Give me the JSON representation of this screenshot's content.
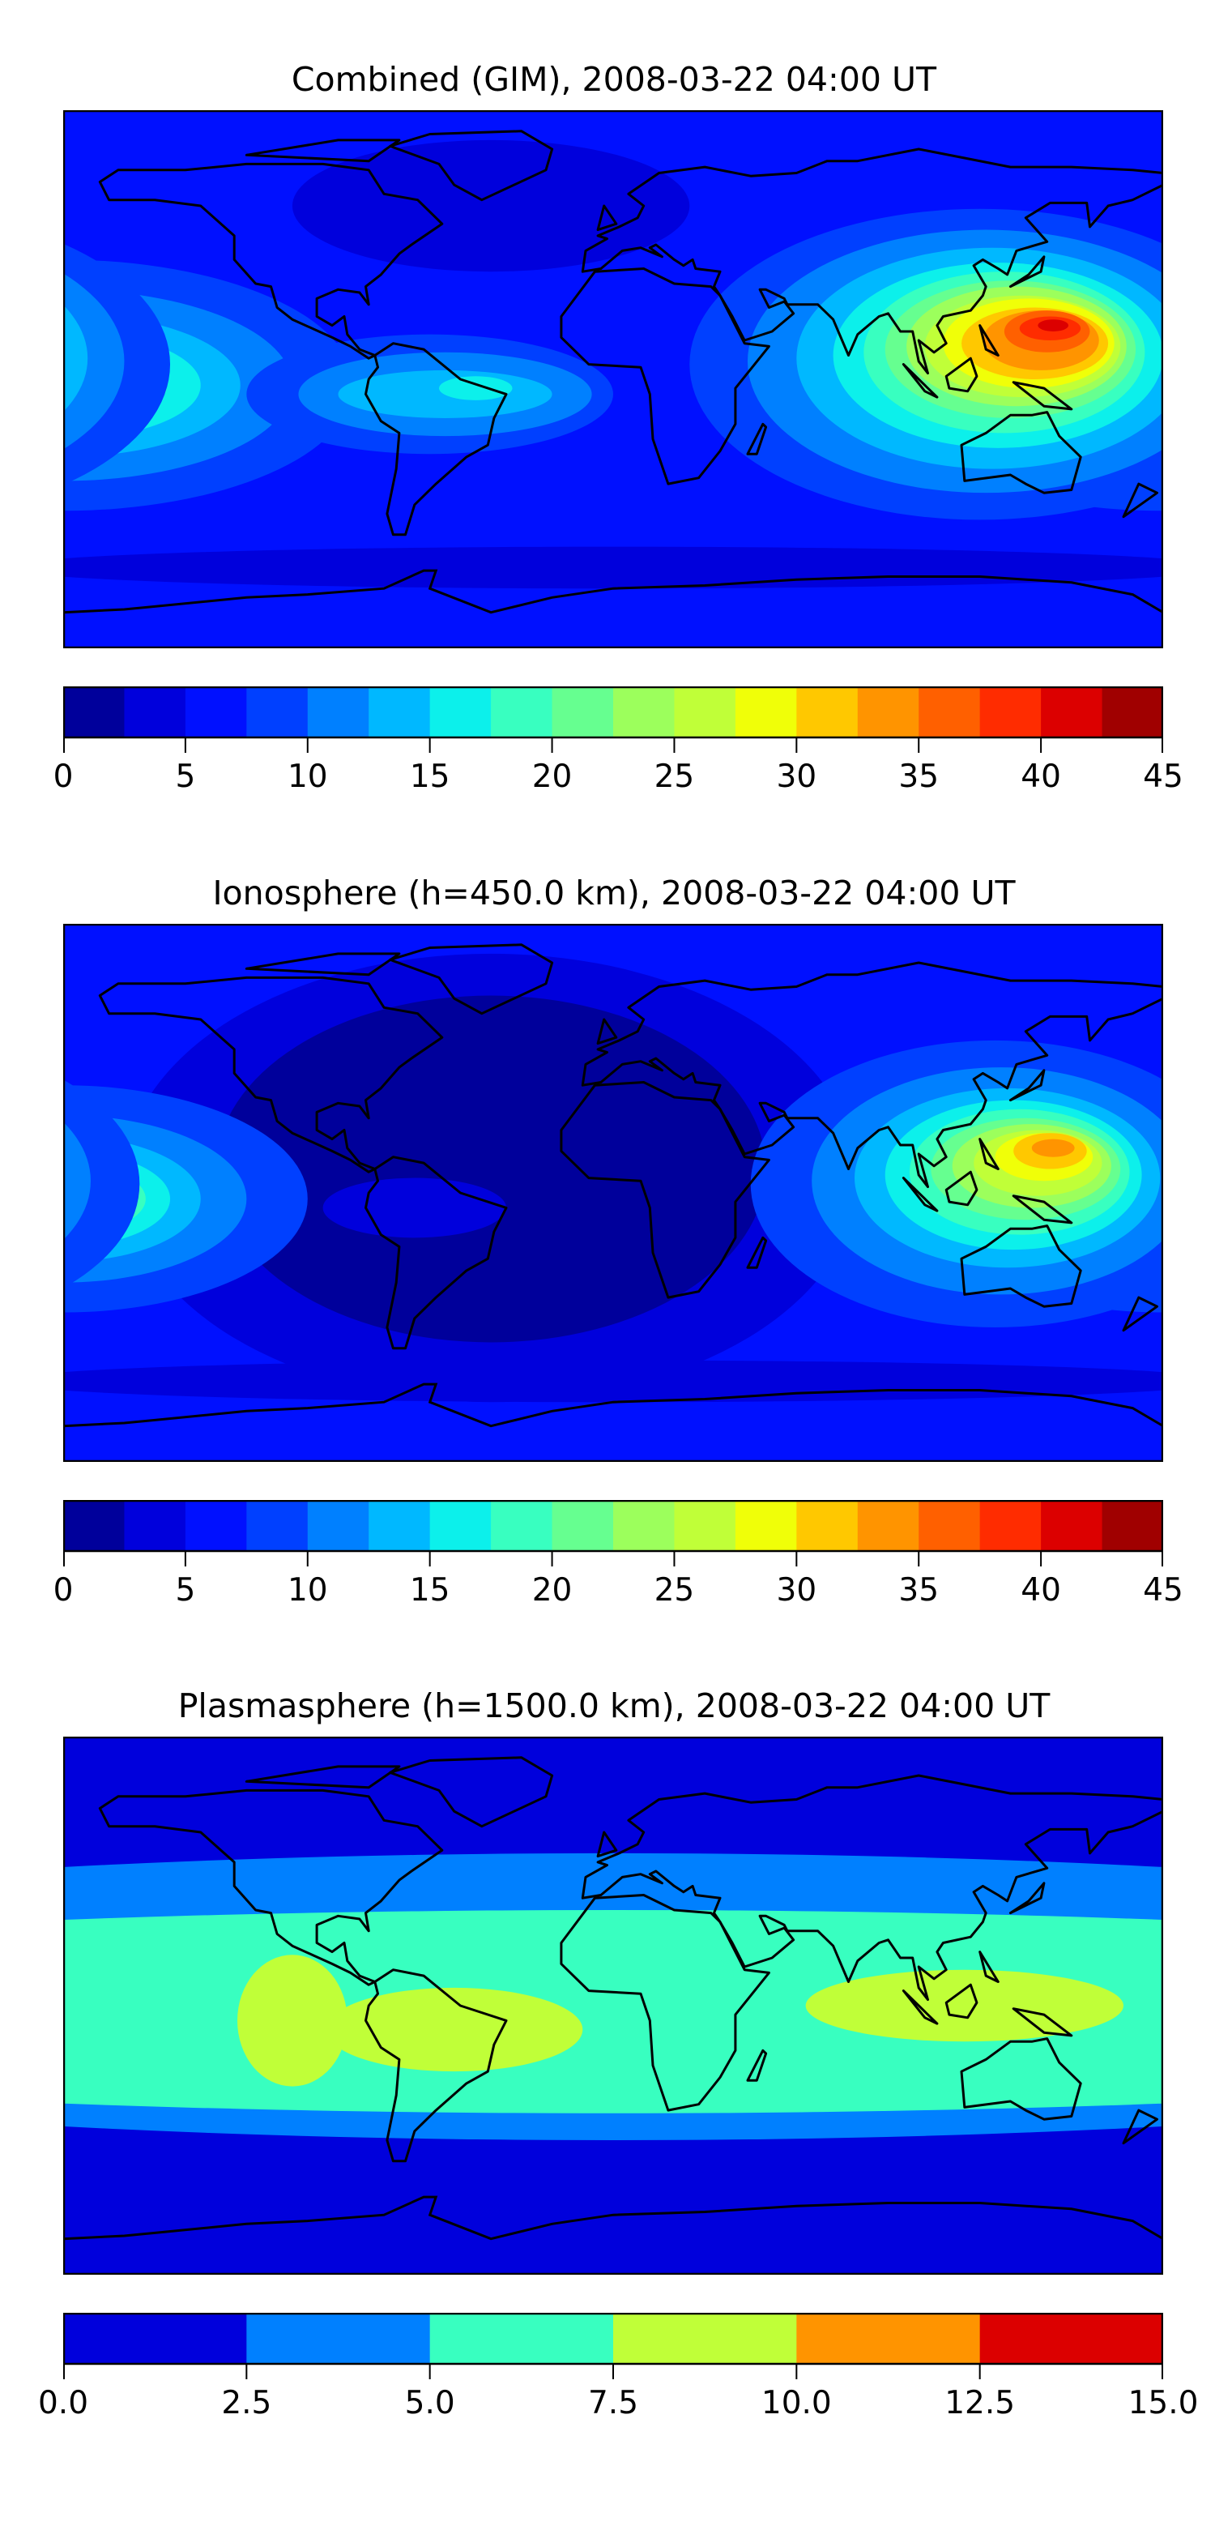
{
  "chart_data": [
    {
      "type": "heatmap",
      "title": "Combined (GIM), 2008-03-22 04:00 UT",
      "projection": "equirectangular",
      "lon_range": [
        -180,
        180
      ],
      "lat_range": [
        -90,
        90
      ],
      "colorbar": {
        "levels": [
          0,
          2.5,
          5,
          7.5,
          10,
          12.5,
          15,
          17.5,
          20,
          22.5,
          25,
          27.5,
          30,
          32.5,
          35,
          37.5,
          40,
          42.5,
          45
        ],
        "colors": [
          "#00009b",
          "#0000dc",
          "#0010ff",
          "#0040ff",
          "#0080ff",
          "#00b8ff",
          "#0cf0eb",
          "#38ffc0",
          "#66ff90",
          "#9cff5c",
          "#c0ff38",
          "#f0ff08",
          "#ffc800",
          "#ff9400",
          "#ff6000",
          "#ff2c00",
          "#dc0000",
          "#a00000"
        ],
        "ticks": [
          "0",
          "5",
          "10",
          "15",
          "20",
          "25",
          "30",
          "35",
          "40",
          "45"
        ],
        "tick_values": [
          0,
          5,
          10,
          15,
          20,
          25,
          30,
          35,
          40,
          45
        ]
      },
      "background_level": 2,
      "contour_regions": [
        {
          "level": 1,
          "lon": -40,
          "lat": 58,
          "rx": 65,
          "ry": 22
        },
        {
          "level": 1,
          "lon": 0,
          "lat": -63,
          "rx": 200,
          "ry": 7
        },
        {
          "level": 3,
          "lon": -180,
          "lat": -2,
          "rx": 95,
          "ry": 42
        },
        {
          "level": 4,
          "lon": -180,
          "lat": -2,
          "rx": 75,
          "ry": 32
        },
        {
          "level": 5,
          "lon": -180,
          "lat": -2,
          "rx": 58,
          "ry": 24
        },
        {
          "level": 6,
          "lon": -180,
          "lat": -2,
          "rx": 45,
          "ry": 18
        },
        {
          "level": 7,
          "lon": -180,
          "lat": -2,
          "rx": 34,
          "ry": 14
        },
        {
          "level": 8,
          "lon": -180,
          "lat": -2,
          "rx": 26,
          "ry": 11
        },
        {
          "level": 9,
          "lon": -180,
          "lat": -2,
          "rx": 19,
          "ry": 8
        },
        {
          "level": 10,
          "lon": -180,
          "lat": -2,
          "rx": 13,
          "ry": 6
        },
        {
          "level": 11,
          "lon": -180,
          "lat": -2,
          "rx": 7,
          "ry": 3
        },
        {
          "level": 3,
          "lon": -60,
          "lat": -5,
          "rx": 60,
          "ry": 20
        },
        {
          "level": 4,
          "lon": -55,
          "lat": -5,
          "rx": 48,
          "ry": 14
        },
        {
          "level": 5,
          "lon": -55,
          "lat": -5,
          "rx": 35,
          "ry": 8
        },
        {
          "level": 6,
          "lon": -45,
          "lat": -3,
          "rx": 12,
          "ry": 4
        },
        {
          "level": 3,
          "lon": 120,
          "lat": 5,
          "rx": 95,
          "ry": 52
        },
        {
          "level": 4,
          "lon": 122,
          "lat": 6,
          "rx": 78,
          "ry": 44
        },
        {
          "level": 5,
          "lon": 124,
          "lat": 7,
          "rx": 64,
          "ry": 37
        },
        {
          "level": 6,
          "lon": 126,
          "lat": 8,
          "rx": 54,
          "ry": 31
        },
        {
          "level": 7,
          "lon": 128,
          "lat": 9,
          "rx": 46,
          "ry": 27
        },
        {
          "level": 8,
          "lon": 130,
          "lat": 10,
          "rx": 41,
          "ry": 23
        },
        {
          "level": 9,
          "lon": 132,
          "lat": 11,
          "rx": 36,
          "ry": 20
        },
        {
          "level": 10,
          "lon": 134,
          "lat": 11,
          "rx": 32,
          "ry": 17
        },
        {
          "level": 11,
          "lon": 136,
          "lat": 12,
          "rx": 28,
          "ry": 15
        },
        {
          "level": 12,
          "lon": 138,
          "lat": 12,
          "rx": 24,
          "ry": 12
        },
        {
          "level": 13,
          "lon": 140,
          "lat": 13,
          "rx": 19,
          "ry": 10
        },
        {
          "level": 14,
          "lon": 142,
          "lat": 16,
          "rx": 14,
          "ry": 7
        },
        {
          "level": 15,
          "lon": 143,
          "lat": 17,
          "rx": 10,
          "ry": 4
        },
        {
          "level": 16,
          "lon": 144,
          "lat": 18,
          "rx": 5,
          "ry": 2
        }
      ]
    },
    {
      "type": "heatmap",
      "title": "Ionosphere  (h=450.0 km), 2008-03-22 04:00 UT",
      "projection": "equirectangular",
      "lon_range": [
        -180,
        180
      ],
      "lat_range": [
        -90,
        90
      ],
      "colorbar": {
        "levels": [
          0,
          2.5,
          5,
          7.5,
          10,
          12.5,
          15,
          17.5,
          20,
          22.5,
          25,
          27.5,
          30,
          32.5,
          35,
          37.5,
          40,
          42.5,
          45
        ],
        "colors": [
          "#00009b",
          "#0000dc",
          "#0010ff",
          "#0040ff",
          "#0080ff",
          "#00b8ff",
          "#0cf0eb",
          "#38ffc0",
          "#66ff90",
          "#9cff5c",
          "#c0ff38",
          "#f0ff08",
          "#ffc800",
          "#ff9400",
          "#ff6000",
          "#ff2c00",
          "#dc0000",
          "#a00000"
        ],
        "ticks": [
          "0",
          "5",
          "10",
          "15",
          "20",
          "25",
          "30",
          "35",
          "40",
          "45"
        ],
        "tick_values": [
          0,
          5,
          10,
          15,
          20,
          25,
          30,
          35,
          40,
          45
        ]
      },
      "background_level": 2,
      "contour_regions": [
        {
          "level": 1,
          "lon": -40,
          "lat": 5,
          "rx": 120,
          "ry": 75
        },
        {
          "level": 0,
          "lon": -40,
          "lat": 8,
          "rx": 90,
          "ry": 58
        },
        {
          "level": 1,
          "lon": 0,
          "lat": -63,
          "rx": 200,
          "ry": 7
        },
        {
          "level": 3,
          "lon": -180,
          "lat": -2,
          "rx": 80,
          "ry": 38
        },
        {
          "level": 4,
          "lon": -180,
          "lat": -2,
          "rx": 60,
          "ry": 28
        },
        {
          "level": 5,
          "lon": -180,
          "lat": -2,
          "rx": 45,
          "ry": 21
        },
        {
          "level": 6,
          "lon": -180,
          "lat": -2,
          "rx": 35,
          "ry": 16
        },
        {
          "level": 7,
          "lon": -180,
          "lat": -2,
          "rx": 27,
          "ry": 12
        },
        {
          "level": 8,
          "lon": -180,
          "lat": -2,
          "rx": 20,
          "ry": 9
        },
        {
          "level": 9,
          "lon": -180,
          "lat": -2,
          "rx": 14,
          "ry": 6
        },
        {
          "level": 10,
          "lon": -180,
          "lat": -2,
          "rx": 8,
          "ry": 4
        },
        {
          "level": 1,
          "lon": -65,
          "lat": -5,
          "rx": 30,
          "ry": 10
        },
        {
          "level": 3,
          "lon": 125,
          "lat": 3,
          "rx": 80,
          "ry": 48
        },
        {
          "level": 4,
          "lon": 127,
          "lat": 4,
          "rx": 62,
          "ry": 38
        },
        {
          "level": 5,
          "lon": 129,
          "lat": 5,
          "rx": 50,
          "ry": 30
        },
        {
          "level": 6,
          "lon": 131,
          "lat": 6,
          "rx": 42,
          "ry": 25
        },
        {
          "level": 7,
          "lon": 133,
          "lat": 7,
          "rx": 36,
          "ry": 21
        },
        {
          "level": 8,
          "lon": 135,
          "lat": 8,
          "rx": 31,
          "ry": 17
        },
        {
          "level": 9,
          "lon": 137,
          "lat": 9,
          "rx": 26,
          "ry": 14
        },
        {
          "level": 10,
          "lon": 139,
          "lat": 10,
          "rx": 21,
          "ry": 11
        },
        {
          "level": 11,
          "lon": 141,
          "lat": 12,
          "rx": 16,
          "ry": 8
        },
        {
          "level": 12,
          "lon": 143,
          "lat": 14,
          "rx": 12,
          "ry": 6
        },
        {
          "level": 13,
          "lon": 144,
          "lat": 15,
          "rx": 7,
          "ry": 3
        }
      ]
    },
    {
      "type": "heatmap",
      "title": "Plasmasphere (h=1500.0 km), 2008-03-22 04:00 UT",
      "projection": "equirectangular",
      "lon_range": [
        -180,
        180
      ],
      "lat_range": [
        -90,
        90
      ],
      "colorbar": {
        "levels": [
          0,
          2.5,
          5,
          7.5,
          10,
          12.5,
          15
        ],
        "colors": [
          "#0000dc",
          "#0080ff",
          "#38ffc0",
          "#c0ff38",
          "#ff9400",
          "#dc0000"
        ],
        "ticks": [
          "0.0",
          "2.5",
          "5.0",
          "7.5",
          "10.0",
          "12.5",
          "15.0"
        ],
        "tick_values": [
          0,
          2.5,
          5,
          7.5,
          10,
          12.5,
          15
        ]
      },
      "background_level": 0,
      "contour_regions": [
        {
          "level": 1,
          "lon": 0,
          "lat": 3,
          "rx": 420,
          "ry": 48
        },
        {
          "level": 2,
          "lon": 0,
          "lat": -2,
          "rx": 420,
          "ry": 34
        },
        {
          "level": 3,
          "lon": -105,
          "lat": -5,
          "rx": 18,
          "ry": 22
        },
        {
          "level": 3,
          "lon": -52,
          "lat": -8,
          "rx": 42,
          "ry": 14
        },
        {
          "level": 3,
          "lon": 115,
          "lat": 0,
          "rx": 52,
          "ry": 12
        }
      ]
    }
  ]
}
